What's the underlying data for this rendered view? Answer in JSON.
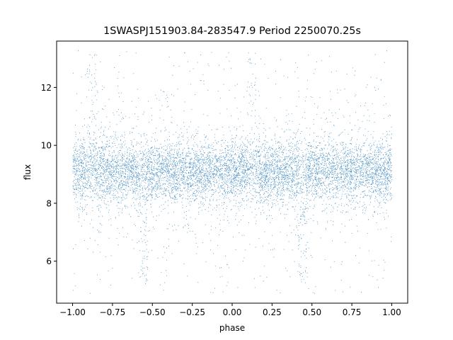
{
  "chart_data": {
    "type": "scatter",
    "title": "1SWASPJ151903.84-283547.9 Period 2250070.25s",
    "xlabel": "phase",
    "ylabel": "flux",
    "xlim": [
      -1.1,
      1.1
    ],
    "ylim": [
      4.55,
      13.6
    ],
    "xticks": [
      -1.0,
      -0.75,
      -0.5,
      -0.25,
      0.0,
      0.25,
      0.5,
      0.75,
      1.0
    ],
    "xtick_labels": [
      "−1.00",
      "−0.75",
      "−0.50",
      "−0.25",
      "0.00",
      "0.25",
      "0.50",
      "0.75",
      "1.00"
    ],
    "yticks": [
      6,
      8,
      10,
      12
    ],
    "ytick_labels": [
      "6",
      "8",
      "10",
      "12"
    ],
    "grid": false,
    "point_color": "#1f77b4",
    "series": [
      {
        "phase_range": [
          -1.0,
          1.0
        ],
        "flux_center": 9.1,
        "flux_core_range": [
          8.2,
          10.1
        ],
        "flux_full_range": [
          4.9,
          13.3
        ],
        "features": [
          {
            "phase": -0.56,
            "flux_min": 5.3
          },
          {
            "phase": 0.44,
            "flux_min": 5.3
          },
          {
            "phase": -0.88,
            "flux_max": 13.2
          },
          {
            "phase": 0.12,
            "flux_max": 13.2
          }
        ]
      }
    ]
  }
}
